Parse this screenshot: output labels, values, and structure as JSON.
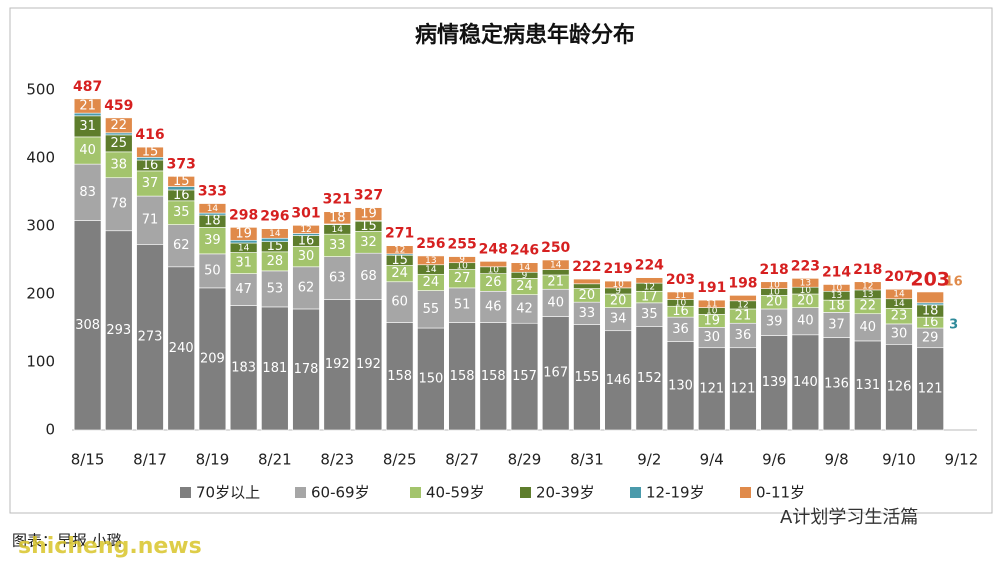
{
  "chart_data": {
    "type": "stacked_bar",
    "title": "病情稳定病患年龄分布",
    "categories": [
      "8/15",
      null,
      "8/17",
      null,
      "8/19",
      null,
      "8/21",
      null,
      "8/23",
      null,
      "8/25",
      null,
      "8/27",
      null,
      "8/29",
      null,
      "8/31",
      null,
      "9/2",
      null,
      "9/4",
      null,
      "9/6",
      null,
      "9/8",
      null,
      "9/10",
      null,
      "9/12"
    ],
    "ylim": [
      0,
      500
    ],
    "yticks": [
      0,
      100,
      200,
      300,
      400,
      500
    ],
    "grid": false,
    "legend": "bottom",
    "series": [
      {
        "name": "70岁以上",
        "color": "#7f7f7f",
        "values": [
          308,
          293,
          273,
          240,
          209,
          183,
          181,
          178,
          192,
          192,
          158,
          150,
          158,
          158,
          157,
          167,
          155,
          146,
          152,
          130,
          121,
          121,
          139,
          140,
          136,
          131,
          126,
          121,
          null
        ]
      },
      {
        "name": "60-69岁",
        "color": "#a6a6a6",
        "values": [
          83,
          78,
          71,
          62,
          50,
          47,
          53,
          62,
          63,
          68,
          60,
          55,
          51,
          46,
          42,
          40,
          33,
          34,
          35,
          36,
          30,
          36,
          39,
          40,
          37,
          40,
          30,
          29,
          null
        ]
      },
      {
        "name": "40-59岁",
        "color": "#a3c46c",
        "values": [
          40,
          38,
          37,
          35,
          39,
          31,
          28,
          30,
          33,
          32,
          24,
          24,
          27,
          26,
          24,
          21,
          20,
          20,
          17,
          16,
          19,
          21,
          20,
          20,
          18,
          22,
          23,
          16,
          null
        ]
      },
      {
        "name": "20-39岁",
        "color": "#5e7d2c",
        "values": [
          31,
          25,
          16,
          16,
          18,
          14,
          15,
          16,
          14,
          15,
          15,
          14,
          10,
          10,
          9,
          8,
          7,
          9,
          12,
          10,
          10,
          12,
          10,
          10,
          13,
          13,
          14,
          18,
          null
        ]
      },
      {
        "name": "12-19岁",
        "color": "#4a9aab",
        "values": [
          4,
          3,
          4,
          5,
          3,
          4,
          5,
          3,
          1,
          1,
          2,
          0,
          0,
          0,
          0,
          0,
          0,
          0,
          0,
          0,
          0,
          0,
          0,
          0,
          0,
          0,
          0,
          3,
          null
        ]
      },
      {
        "name": "0-11岁",
        "color": "#e08a4a",
        "values": [
          21,
          22,
          15,
          15,
          14,
          19,
          14,
          12,
          18,
          19,
          12,
          13,
          9,
          8,
          14,
          14,
          7,
          10,
          8,
          11,
          11,
          8,
          10,
          13,
          10,
          12,
          14,
          16,
          null
        ]
      }
    ],
    "totals": [
      487,
      459,
      416,
      373,
      333,
      298,
      296,
      301,
      321,
      327,
      271,
      256,
      255,
      248,
      246,
      250,
      222,
      219,
      224,
      203,
      191,
      198,
      218,
      223,
      214,
      218,
      207,
      203,
      null
    ],
    "source": "图表：早报 小璐",
    "watermark": "shicheng.news",
    "account": "A计划学习生活篇"
  }
}
